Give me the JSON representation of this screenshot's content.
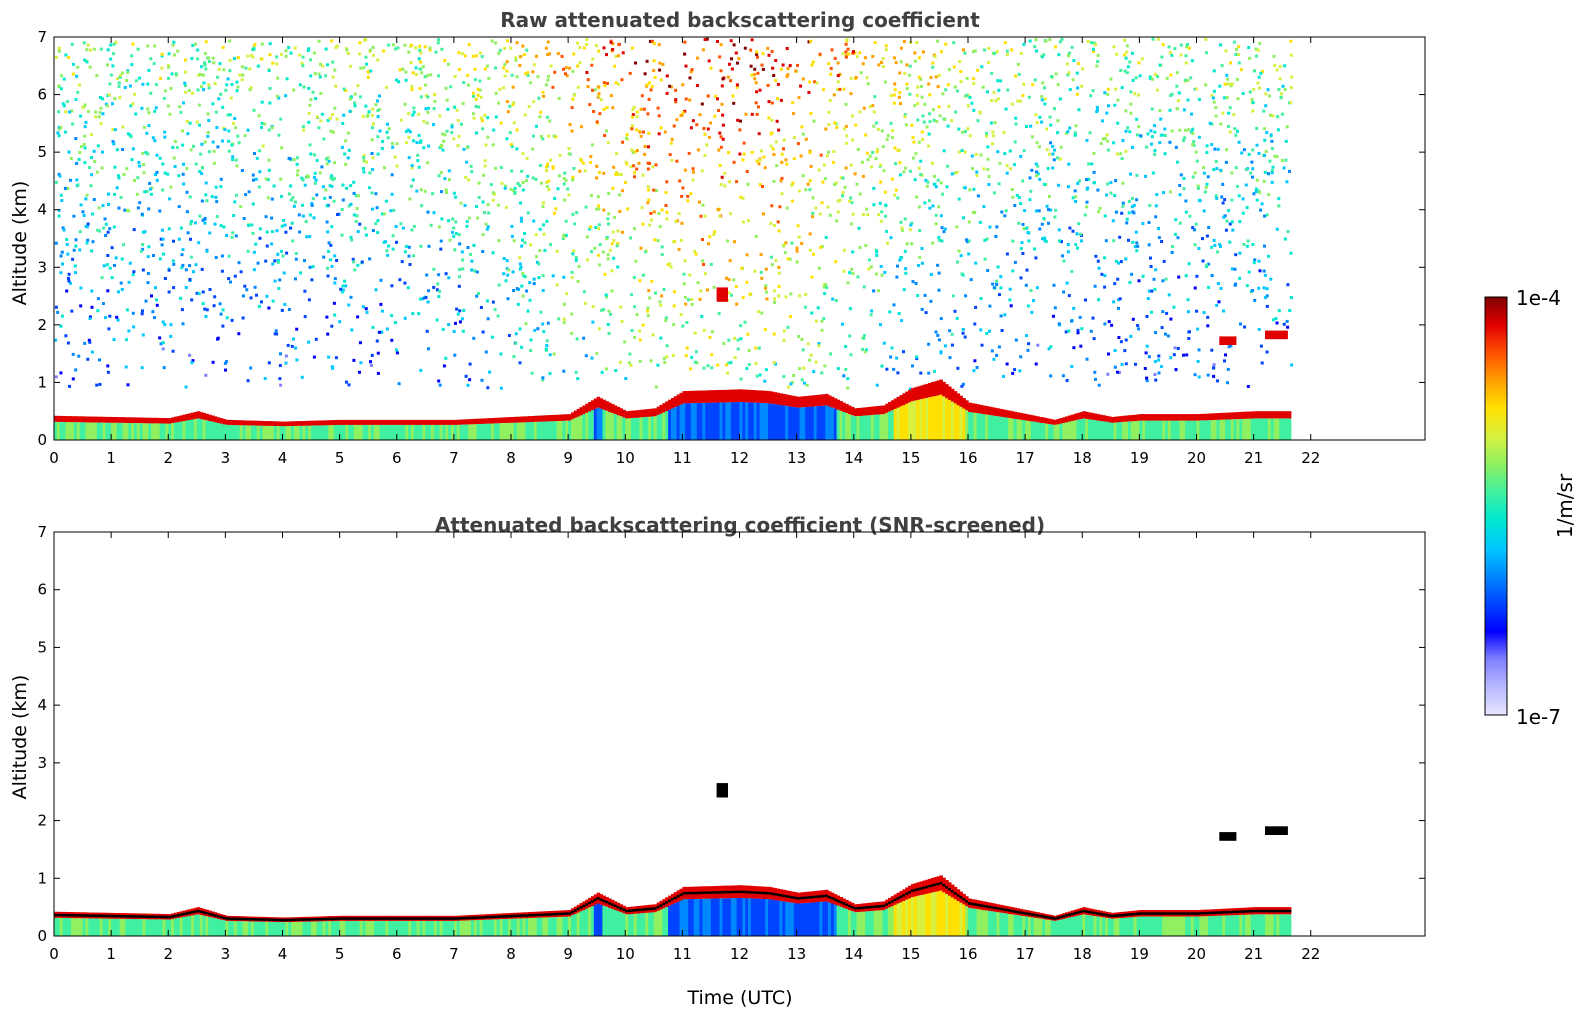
{
  "chart_data": [
    {
      "type": "heatmap",
      "title": "Raw attenuated backscattering coefficient",
      "xlabel": "",
      "ylabel": "Altitude (km)",
      "xlim": [
        0,
        24
      ],
      "ylim": [
        0,
        7
      ],
      "x_ticks": [
        "0",
        "1",
        "2",
        "3",
        "4",
        "5",
        "6",
        "7",
        "8",
        "9",
        "10",
        "11",
        "12",
        "13",
        "14",
        "15",
        "16",
        "17",
        "18",
        "19",
        "20",
        "21",
        "22"
      ],
      "y_ticks": [
        "0",
        "1",
        "2",
        "3",
        "4",
        "5",
        "6",
        "7"
      ],
      "data_end_time": 21.65,
      "screened": false,
      "aerosol_layer_top_km": [
        [
          0,
          0.42
        ],
        [
          1,
          0.4
        ],
        [
          2,
          0.38
        ],
        [
          2.5,
          0.5
        ],
        [
          3,
          0.35
        ],
        [
          4,
          0.32
        ],
        [
          5,
          0.35
        ],
        [
          6,
          0.35
        ],
        [
          7,
          0.35
        ],
        [
          8,
          0.4
        ],
        [
          9,
          0.45
        ],
        [
          9.5,
          0.75
        ],
        [
          10,
          0.5
        ],
        [
          10.5,
          0.55
        ],
        [
          11,
          0.85
        ],
        [
          12,
          0.88
        ],
        [
          12.5,
          0.85
        ],
        [
          13,
          0.75
        ],
        [
          13.5,
          0.8
        ],
        [
          14,
          0.55
        ],
        [
          14.5,
          0.6
        ],
        [
          15,
          0.9
        ],
        [
          15.5,
          1.05
        ],
        [
          16,
          0.65
        ],
        [
          16.5,
          0.55
        ],
        [
          17,
          0.45
        ],
        [
          17.5,
          0.35
        ],
        [
          18,
          0.5
        ],
        [
          18.5,
          0.4
        ],
        [
          19,
          0.45
        ],
        [
          20,
          0.45
        ],
        [
          21,
          0.5
        ],
        [
          21.65,
          0.5
        ]
      ],
      "elevated_layers": [
        {
          "time_start": 11.6,
          "time_end": 11.8,
          "alt_bottom_km": 2.4,
          "alt_top_km": 2.65
        },
        {
          "time_start": 20.4,
          "time_end": 20.7,
          "alt_bottom_km": 1.65,
          "alt_top_km": 1.8
        },
        {
          "time_start": 21.2,
          "time_end": 21.6,
          "alt_bottom_km": 1.75,
          "alt_top_km": 1.9
        }
      ]
    },
    {
      "type": "heatmap",
      "title": "Attenuated backscattering coefficient (SNR-screened)",
      "xlabel": "Time (UTC)",
      "ylabel": "Altitude (km)",
      "xlim": [
        0,
        24
      ],
      "ylim": [
        0,
        7
      ],
      "x_ticks": [
        "0",
        "1",
        "2",
        "3",
        "4",
        "5",
        "6",
        "7",
        "8",
        "9",
        "10",
        "11",
        "12",
        "13",
        "14",
        "15",
        "16",
        "17",
        "18",
        "19",
        "20",
        "21",
        "22"
      ],
      "y_ticks": [
        "0",
        "1",
        "2",
        "3",
        "4",
        "5",
        "6",
        "7"
      ],
      "data_end_time": 21.65,
      "screened": true,
      "aerosol_layer_top_km": [
        [
          0,
          0.42
        ],
        [
          1,
          0.4
        ],
        [
          2,
          0.38
        ],
        [
          2.5,
          0.5
        ],
        [
          3,
          0.35
        ],
        [
          4,
          0.32
        ],
        [
          5,
          0.35
        ],
        [
          6,
          0.35
        ],
        [
          7,
          0.35
        ],
        [
          8,
          0.4
        ],
        [
          9,
          0.45
        ],
        [
          9.5,
          0.75
        ],
        [
          10,
          0.5
        ],
        [
          10.5,
          0.55
        ],
        [
          11,
          0.85
        ],
        [
          12,
          0.88
        ],
        [
          12.5,
          0.85
        ],
        [
          13,
          0.75
        ],
        [
          13.5,
          0.8
        ],
        [
          14,
          0.55
        ],
        [
          14.5,
          0.6
        ],
        [
          15,
          0.9
        ],
        [
          15.5,
          1.05
        ],
        [
          16,
          0.65
        ],
        [
          16.5,
          0.55
        ],
        [
          17,
          0.45
        ],
        [
          17.5,
          0.35
        ],
        [
          18,
          0.5
        ],
        [
          18.5,
          0.4
        ],
        [
          19,
          0.45
        ],
        [
          20,
          0.45
        ],
        [
          21,
          0.5
        ],
        [
          21.65,
          0.5
        ]
      ],
      "elevated_layers": [
        {
          "time_start": 11.6,
          "time_end": 11.8,
          "alt_bottom_km": 2.4,
          "alt_top_km": 2.65
        },
        {
          "time_start": 20.4,
          "time_end": 20.7,
          "alt_bottom_km": 1.65,
          "alt_top_km": 1.8
        },
        {
          "time_start": 21.2,
          "time_end": 21.6,
          "alt_bottom_km": 1.75,
          "alt_top_km": 1.9
        }
      ]
    }
  ],
  "colorbar": {
    "max_label": "1e-4",
    "min_label": "1e-7",
    "unit_label": "1/m/sr",
    "colors": [
      "#e8e8ff",
      "#b8b8ff",
      "#8080ff",
      "#0000ff",
      "#0044ff",
      "#0088ff",
      "#00c8ff",
      "#00e8d0",
      "#40f0a0",
      "#90f060",
      "#d8f040",
      "#ffe000",
      "#ffa000",
      "#ff5000",
      "#e00000",
      "#800000"
    ]
  }
}
